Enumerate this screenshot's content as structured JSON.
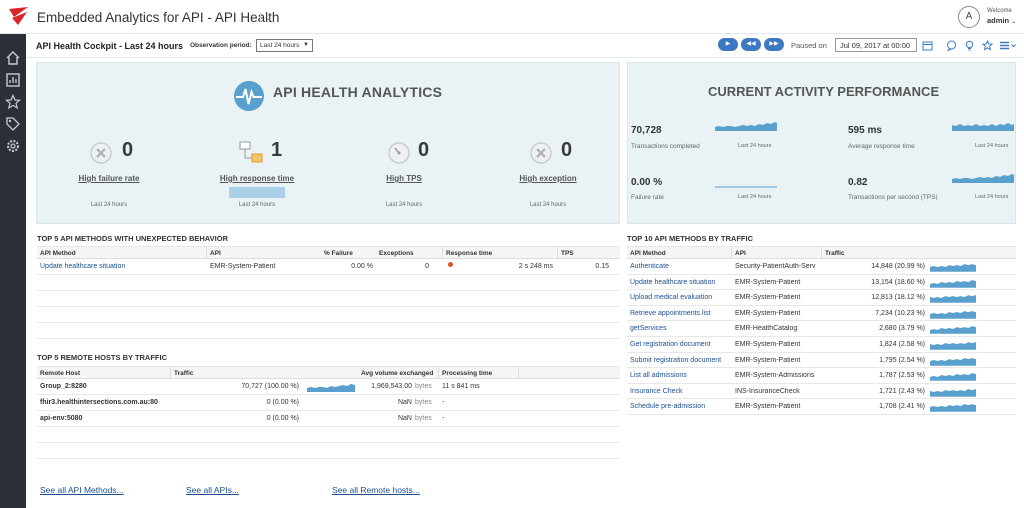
{
  "header": {
    "title": "Embedded Analytics for API - API Health",
    "avatar_letter": "A",
    "welcome": "Welcome",
    "user": "admin"
  },
  "subheader": {
    "cockpit_title": "API Health Cockpit  -  Last 24 hours",
    "obs_label": "Observation period:",
    "obs_value": "Last 24 hours",
    "paused_label": "Paused on",
    "paused_date": "Jul 09, 2017 at 00:00"
  },
  "api_panel": {
    "heading": "API HEALTH ANALYTICS",
    "kpis": [
      {
        "label": "High failure rate",
        "value": "0",
        "sub": "Last 24 hours",
        "icon": "failure-icon"
      },
      {
        "label": "High response time",
        "value": "1",
        "sub": "Last 24 hours",
        "icon": "response-time-icon"
      },
      {
        "label": "High TPS",
        "value": "0",
        "sub": "Last 24 hours",
        "icon": "tps-gauge-icon"
      },
      {
        "label": "High exception",
        "value": "0",
        "sub": "Last 24 hours",
        "icon": "exception-icon"
      }
    ]
  },
  "current_panel": {
    "heading": "CURRENT ACTIVITY PERFORMANCE",
    "metrics": [
      {
        "value": "70,728",
        "desc": "Transactions completed",
        "sub": "Last 24 hours"
      },
      {
        "value": "595 ms",
        "desc": "Average response time",
        "sub": "Last 24 hours"
      },
      {
        "value": "0.00 %",
        "desc": "Failure rate",
        "sub": "Last 24 hours"
      },
      {
        "value": "0.82",
        "desc": "Transactions per second (TPS)",
        "sub": "Last 24 hours"
      }
    ]
  },
  "methods_unexpected": {
    "title": "TOP 5 API METHODS WITH UNEXPECTED BEHAVIOR",
    "columns": [
      "API Method",
      "API",
      "% Failure",
      "Exceptions",
      "Response time",
      "TPS"
    ],
    "rows": [
      {
        "method": "Update healthcare situation",
        "api": "EMR-System-Patient",
        "failure": "0.00 %",
        "exceptions": "0",
        "response": "2 s 248 ms",
        "tps": "0.15"
      }
    ]
  },
  "remote_hosts": {
    "title": "TOP 5 REMOTE HOSTS BY TRAFFIC",
    "columns": [
      "Remote Host",
      "Traffic",
      "Avg volume exchanged",
      "Processing time"
    ],
    "rows": [
      {
        "host": "Group_2:8280",
        "traffic": "70,727 (100.00 %)",
        "volume": "1,969,543.00",
        "unit": "bytes",
        "time": "11 s 841 ms"
      },
      {
        "host": "fhir3.healthintersections.com.au:80",
        "traffic": "0 (0.00 %)",
        "volume": "NaN",
        "unit": "bytes",
        "time": "-"
      },
      {
        "host": "api-env:5080",
        "traffic": "0 (0.00 %)",
        "volume": "NaN",
        "unit": "bytes",
        "time": "-"
      }
    ]
  },
  "top_methods": {
    "title": "TOP 10 API METHODS BY TRAFFIC",
    "columns": [
      "API Method",
      "API",
      "Traffic"
    ],
    "rows": [
      {
        "method": "Authenticate",
        "api": "Security-PatientAuth-Serv",
        "traffic": "14,848 (20.99 %)"
      },
      {
        "method": "Update healthcare situation",
        "api": "EMR-System-Patient",
        "traffic": "13,154 (18.60 %)"
      },
      {
        "method": "Upload medical evaluation",
        "api": "EMR-System-Patient",
        "traffic": "12,813 (18.12 %)"
      },
      {
        "method": "Retrieve appointments list",
        "api": "EMR-System-Patient",
        "traffic": "7,234 (10.23 %)"
      },
      {
        "method": "getServices",
        "api": "EMR-HealthCatalog",
        "traffic": "2,680 (3.79 %)"
      },
      {
        "method": "Get registration document",
        "api": "EMR-System-Patient",
        "traffic": "1,824 (2.58 %)"
      },
      {
        "method": "Submit registration document",
        "api": "EMR-System-Patient",
        "traffic": "1,795 (2.54 %)"
      },
      {
        "method": "List all admissions",
        "api": "EMR-System-Admissions",
        "traffic": "1,787 (2.53 %)"
      },
      {
        "method": "Insurance Check",
        "api": "INS-InsuranceCheck",
        "traffic": "1,721 (2.43 %)"
      },
      {
        "method": "Schedule pre-admission",
        "api": "EMR-System-Patient",
        "traffic": "1,708 (2.41 %)"
      }
    ]
  },
  "footer": {
    "methods_link": "See all API Methods...",
    "apis_link": "See all APIs...",
    "hosts_link": "See all Remote hosts..."
  },
  "colors": {
    "sidebar": "#2b2f37",
    "accent": "#3d78c2",
    "panel": "#e9f3f6",
    "spark": "#5aa0cf",
    "link": "#1b4f91",
    "logo_red": "#d9262c"
  }
}
